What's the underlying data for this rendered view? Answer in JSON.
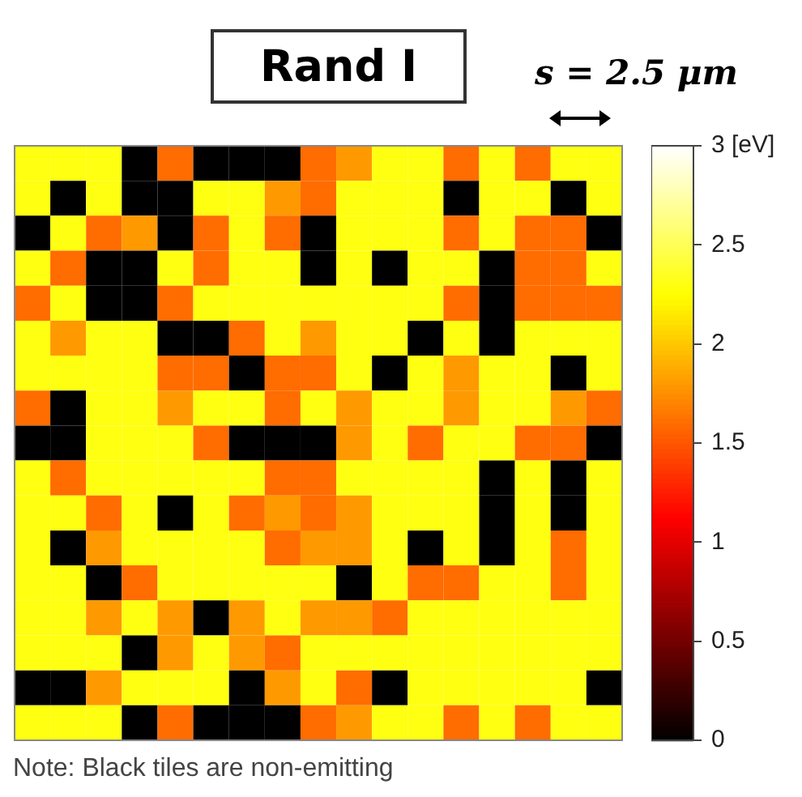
{
  "chart_data": {
    "type": "heatmap",
    "title": "Rand I",
    "annotations": [
      "s = 2.5 μm",
      "Note: Black tiles are non-emitting"
    ],
    "categories": [
      null,
      null,
      null,
      null,
      null,
      null,
      null,
      null,
      null,
      null,
      null,
      null,
      null,
      null,
      null,
      null,
      null
    ],
    "y_categories": [
      null,
      null,
      null,
      null,
      null,
      null,
      null,
      null,
      null,
      null,
      null,
      null,
      null,
      null,
      null,
      null,
      null
    ],
    "clim": [
      0,
      3
    ],
    "cticks": [
      0,
      0.5,
      1,
      1.5,
      2,
      2.5,
      {
        "value": 3,
        "label": "3 [eV]"
      }
    ],
    "cells": [
      [
        2.3,
        2.3,
        2.3,
        0,
        1.6,
        0,
        0,
        0,
        1.6,
        1.8,
        2.3,
        2.3,
        1.6,
        2.3,
        1.6,
        2.3,
        2.3
      ],
      [
        2.3,
        0,
        2.3,
        0,
        0,
        2.3,
        2.3,
        1.8,
        1.6,
        2.3,
        2.3,
        2.3,
        0,
        2.3,
        2.3,
        0,
        2.3
      ],
      [
        0,
        2.3,
        1.6,
        1.8,
        0,
        1.6,
        2.3,
        1.6,
        0,
        2.3,
        2.3,
        2.3,
        1.6,
        2.3,
        1.6,
        1.6,
        0
      ],
      [
        2.3,
        1.6,
        0,
        0,
        2.3,
        1.6,
        2.3,
        2.3,
        0,
        2.3,
        0,
        2.3,
        2.3,
        0,
        1.6,
        1.6,
        2.3
      ],
      [
        1.6,
        2.3,
        0,
        0,
        1.6,
        2.3,
        2.3,
        2.3,
        2.3,
        2.3,
        2.3,
        2.3,
        1.6,
        0,
        1.6,
        1.6,
        1.6
      ],
      [
        2.3,
        1.8,
        2.3,
        2.3,
        0,
        0,
        1.6,
        2.3,
        1.8,
        2.3,
        2.3,
        0,
        2.3,
        0,
        2.3,
        2.3,
        2.3
      ],
      [
        2.3,
        2.3,
        2.3,
        2.3,
        1.6,
        1.6,
        0,
        1.6,
        1.6,
        2.3,
        0,
        2.3,
        1.8,
        2.3,
        2.3,
        0,
        2.3
      ],
      [
        1.6,
        0,
        2.3,
        2.3,
        1.8,
        2.3,
        2.3,
        1.6,
        2.3,
        1.8,
        2.3,
        2.3,
        1.8,
        2.3,
        2.3,
        1.8,
        1.6
      ],
      [
        0,
        0,
        2.3,
        2.3,
        2.3,
        1.6,
        0,
        0,
        0,
        1.8,
        2.3,
        1.6,
        2.3,
        2.3,
        1.6,
        1.6,
        0
      ],
      [
        2.3,
        1.6,
        2.3,
        2.3,
        2.3,
        2.3,
        2.3,
        1.6,
        1.6,
        2.3,
        2.3,
        2.3,
        2.3,
        0,
        2.3,
        0,
        2.3
      ],
      [
        2.3,
        2.3,
        1.6,
        2.3,
        0,
        2.3,
        1.6,
        1.8,
        1.6,
        1.8,
        2.3,
        2.3,
        2.3,
        0,
        2.3,
        0,
        2.3
      ],
      [
        2.3,
        0,
        1.8,
        2.3,
        2.3,
        2.3,
        2.3,
        1.6,
        1.8,
        1.8,
        2.3,
        0,
        2.3,
        0,
        2.3,
        1.6,
        2.3
      ],
      [
        2.3,
        2.3,
        0,
        1.6,
        2.3,
        2.3,
        2.3,
        2.3,
        2.3,
        0,
        2.3,
        1.6,
        1.6,
        2.3,
        2.3,
        1.6,
        2.3
      ],
      [
        2.3,
        2.3,
        1.8,
        2.3,
        1.8,
        0,
        1.8,
        2.3,
        1.8,
        1.8,
        1.6,
        2.3,
        2.3,
        2.3,
        2.3,
        2.3,
        2.3
      ],
      [
        2.3,
        2.3,
        2.3,
        0,
        1.8,
        2.3,
        1.8,
        1.6,
        2.3,
        2.3,
        2.3,
        2.3,
        2.3,
        2.3,
        2.3,
        2.3,
        2.3
      ],
      [
        0,
        0,
        1.8,
        2.3,
        2.3,
        2.3,
        0,
        1.8,
        2.3,
        1.6,
        0,
        2.3,
        2.3,
        2.3,
        2.3,
        2.3,
        0
      ],
      [
        2.3,
        2.3,
        2.3,
        0,
        1.6,
        0,
        0,
        0,
        1.6,
        1.8,
        2.3,
        2.3,
        1.6,
        2.3,
        1.6,
        2.3,
        2.3
      ]
    ]
  }
}
